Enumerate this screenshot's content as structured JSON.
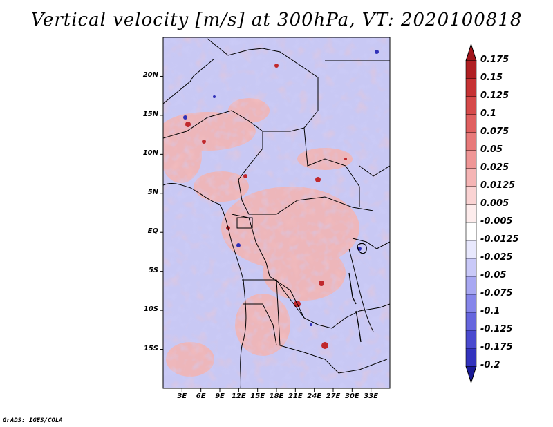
{
  "title": "Vertical velocity [m/s] at 300hPa, VT: 2020100818",
  "credit": "GrADS: IGES/COLA",
  "map": {
    "lon_range": [
      0,
      36
    ],
    "lat_range": [
      -20,
      25
    ],
    "lat_ticks": [
      {
        "lat": 20,
        "label": "20N"
      },
      {
        "lat": 15,
        "label": "15N"
      },
      {
        "lat": 10,
        "label": "10N"
      },
      {
        "lat": 5,
        "label": "5N"
      },
      {
        "lat": 0,
        "label": "EQ"
      },
      {
        "lat": -5,
        "label": "5S"
      },
      {
        "lat": -10,
        "label": "10S"
      },
      {
        "lat": -15,
        "label": "15S"
      }
    ],
    "lon_ticks": [
      {
        "lon": 3,
        "label": "3E"
      },
      {
        "lon": 6,
        "label": "6E"
      },
      {
        "lon": 9,
        "label": "9E"
      },
      {
        "lon": 12,
        "label": "12E"
      },
      {
        "lon": 15,
        "label": "15E"
      },
      {
        "lon": 18,
        "label": "18E"
      },
      {
        "lon": 21,
        "label": "21E"
      },
      {
        "lon": 24,
        "label": "24E"
      },
      {
        "lon": 27,
        "label": "27E"
      },
      {
        "lon": 30,
        "label": "30E"
      },
      {
        "lon": 33,
        "label": "33E"
      }
    ]
  },
  "colorbar": {
    "levels": [
      {
        "label": "0.175",
        "color": "#b01f23"
      },
      {
        "label": "0.15",
        "color": "#c63234"
      },
      {
        "label": "0.125",
        "color": "#d64a4a"
      },
      {
        "label": "0.1",
        "color": "#e06060"
      },
      {
        "label": "0.075",
        "color": "#e87a7a"
      },
      {
        "label": "0.05",
        "color": "#ef9696"
      },
      {
        "label": "0.025",
        "color": "#f5b5b5"
      },
      {
        "label": "0.0125",
        "color": "#fad3d3"
      },
      {
        "label": "0.005",
        "color": "#fdecec"
      },
      {
        "label": "-0.005",
        "color": "#ffffff"
      },
      {
        "label": "-0.0125",
        "color": "#e8e8fd"
      },
      {
        "label": "-0.025",
        "color": "#c9c9f8"
      },
      {
        "label": "-0.05",
        "color": "#a8a8f2"
      },
      {
        "label": "-0.075",
        "color": "#8686ea"
      },
      {
        "label": "-0.1",
        "color": "#6666de"
      },
      {
        "label": "-0.125",
        "color": "#4a4acf"
      },
      {
        "label": "-0.175",
        "color": "#3333be"
      },
      {
        "label": "-0.2",
        "color": "#2424a8"
      }
    ],
    "top_arrow_color": "#a0141a",
    "bottom_arrow_color": "#1a1a96"
  }
}
